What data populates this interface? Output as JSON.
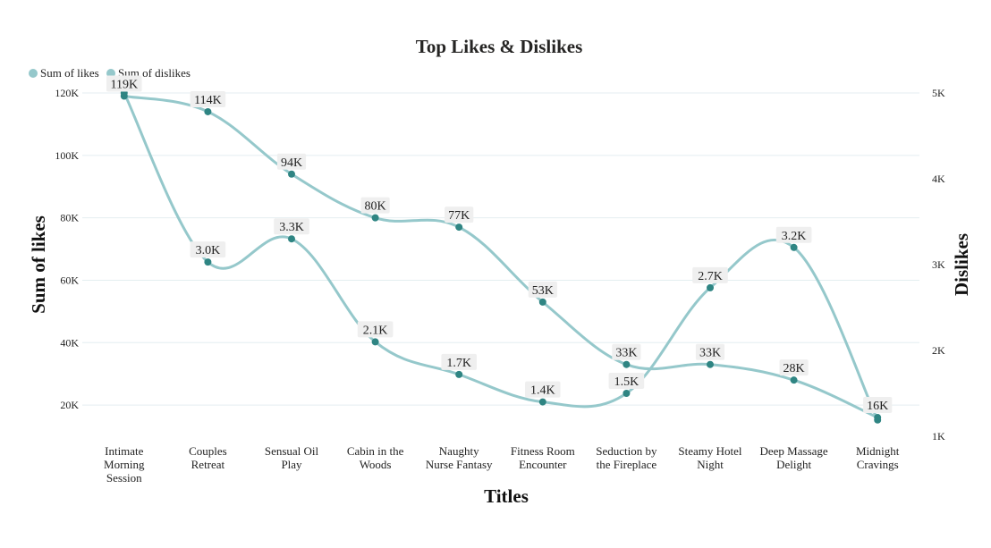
{
  "chart_data": {
    "type": "line",
    "title": "Top Likes & Dislikes",
    "xlabel": "Titles",
    "ylabel": "Sum of likes",
    "y2label": "Dislikes",
    "categories": [
      "Intimate Morning Session",
      "Couples Retreat",
      "Sensual Oil Play",
      "Cabin in the Woods",
      "Naughty Nurse Fantasy",
      "Fitness Room Encounter",
      "Seduction by the Fireplace",
      "Steamy Hotel Night",
      "Deep Massage Delight",
      "Midnight Cravings"
    ],
    "category_lines": [
      [
        "Intimate",
        "Morning",
        "Session"
      ],
      [
        "Couples",
        "Retreat"
      ],
      [
        "Sensual Oil",
        "Play"
      ],
      [
        "Cabin in the",
        "Woods"
      ],
      [
        "Naughty",
        "Nurse Fantasy"
      ],
      [
        "Fitness Room",
        "Encounter"
      ],
      [
        "Seduction by",
        "the Fireplace"
      ],
      [
        "Steamy Hotel",
        "Night"
      ],
      [
        "Deep Massage",
        "Delight"
      ],
      [
        "Midnight",
        "Cravings"
      ]
    ],
    "series": [
      {
        "name": "Sum of likes",
        "axis": "left",
        "values": [
          119000,
          114000,
          94000,
          80000,
          77000,
          53000,
          33000,
          33000,
          28000,
          16000
        ],
        "labels": [
          "119K",
          "114K",
          "94K",
          "80K",
          "77K",
          "53K",
          "33K",
          "33K",
          "28K",
          "16K"
        ]
      },
      {
        "name": "Sum of dislikes",
        "axis": "right",
        "values": [
          5000,
          3030,
          3300,
          2100,
          1720,
          1400,
          1500,
          2730,
          3200,
          1190
        ],
        "labels": [
          "",
          "3.0K",
          "3.3K",
          "2.1K",
          "1.7K",
          "1.4K",
          "1.5K",
          "2.7K",
          "3.2K",
          ""
        ]
      }
    ],
    "ylim": [
      10000,
      120000
    ],
    "y_ticks": [
      20000,
      40000,
      60000,
      80000,
      100000,
      120000
    ],
    "y_tick_labels": [
      "20K",
      "40K",
      "60K",
      "80K",
      "100K",
      "120K"
    ],
    "y2lim": [
      1000,
      5000
    ],
    "y2_ticks": [
      1000,
      2000,
      3000,
      4000,
      5000
    ],
    "y2_tick_labels": [
      "1K",
      "2K",
      "3K",
      "4K",
      "5K"
    ],
    "grid": true,
    "legend_position": "top-left",
    "colors": {
      "line": "#95c8cb",
      "marker": "#2f8583",
      "legend_dot": "#95c8cb",
      "label_bg": "#efefef",
      "grid": "#e4eef0"
    }
  }
}
